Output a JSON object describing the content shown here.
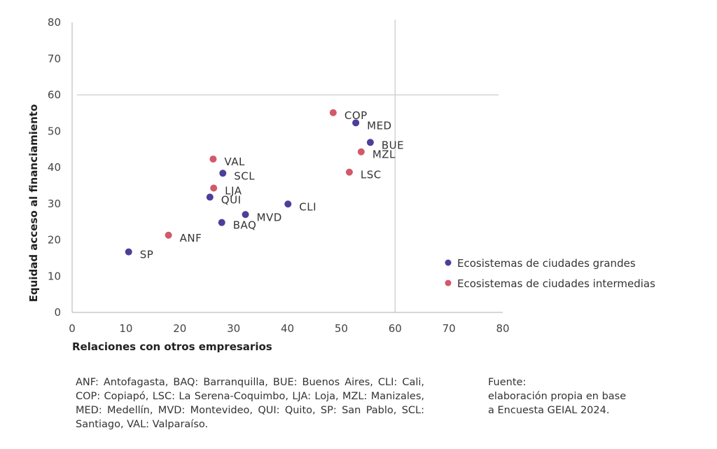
{
  "chart_data": {
    "type": "scatter",
    "xlabel": "Relaciones con otros empresarios",
    "ylabel": "Equidad acceso al financiamiento",
    "xlim": [
      0,
      80
    ],
    "ylim": [
      0,
      80
    ],
    "xticks": [
      0,
      10,
      20,
      30,
      40,
      50,
      60,
      70,
      80
    ],
    "yticks": [
      0,
      10,
      20,
      30,
      40,
      50,
      60,
      70,
      80
    ],
    "reference_lines": {
      "x": 60,
      "y": 60
    },
    "grid": false,
    "legend_position": "right",
    "series": [
      {
        "name": "Ecosistemas de ciudades grandes",
        "color": "#4b3f9a",
        "points": [
          {
            "label": "MED",
            "x": 52.7,
            "y": 52.3
          },
          {
            "label": "BUE",
            "x": 55.4,
            "y": 46.9
          },
          {
            "label": "SCL",
            "x": 28.0,
            "y": 38.4
          },
          {
            "label": "QUI",
            "x": 25.6,
            "y": 31.8
          },
          {
            "label": "CLI",
            "x": 40.1,
            "y": 29.9
          },
          {
            "label": "MVD",
            "x": 32.2,
            "y": 27.0
          },
          {
            "label": "BAQ",
            "x": 27.8,
            "y": 24.8
          },
          {
            "label": "SP",
            "x": 10.5,
            "y": 16.7
          }
        ]
      },
      {
        "name": "Ecosistemas de ciudades intermedias",
        "color": "#d2596a",
        "points": [
          {
            "label": "COP",
            "x": 48.5,
            "y": 55.1
          },
          {
            "label": "MZL",
            "x": 53.7,
            "y": 44.3
          },
          {
            "label": "LSC",
            "x": 51.5,
            "y": 38.7
          },
          {
            "label": "VAL",
            "x": 26.2,
            "y": 42.3
          },
          {
            "label": "LJA",
            "x": 26.3,
            "y": 34.3
          },
          {
            "label": "ANF",
            "x": 17.9,
            "y": 21.3
          }
        ]
      }
    ]
  },
  "notes": {
    "abbreviations": "ANF: Antofagasta, BAQ: Barranquilla, BUE: Buenos Aires, CLI: Cali, COP: Copiapó, LSC: La Serena-Coquimbo, LJA: Loja, MZL: Manizales, MED: Medellín, MVD: Montevideo, QUI: Quito, SP: San Pablo, SCL: Santiago, VAL: Valparaíso.",
    "source_title": "Fuente:",
    "source_line1": "elaboración propia en base",
    "source_line2": "a Encuesta GEIAL 2024."
  }
}
